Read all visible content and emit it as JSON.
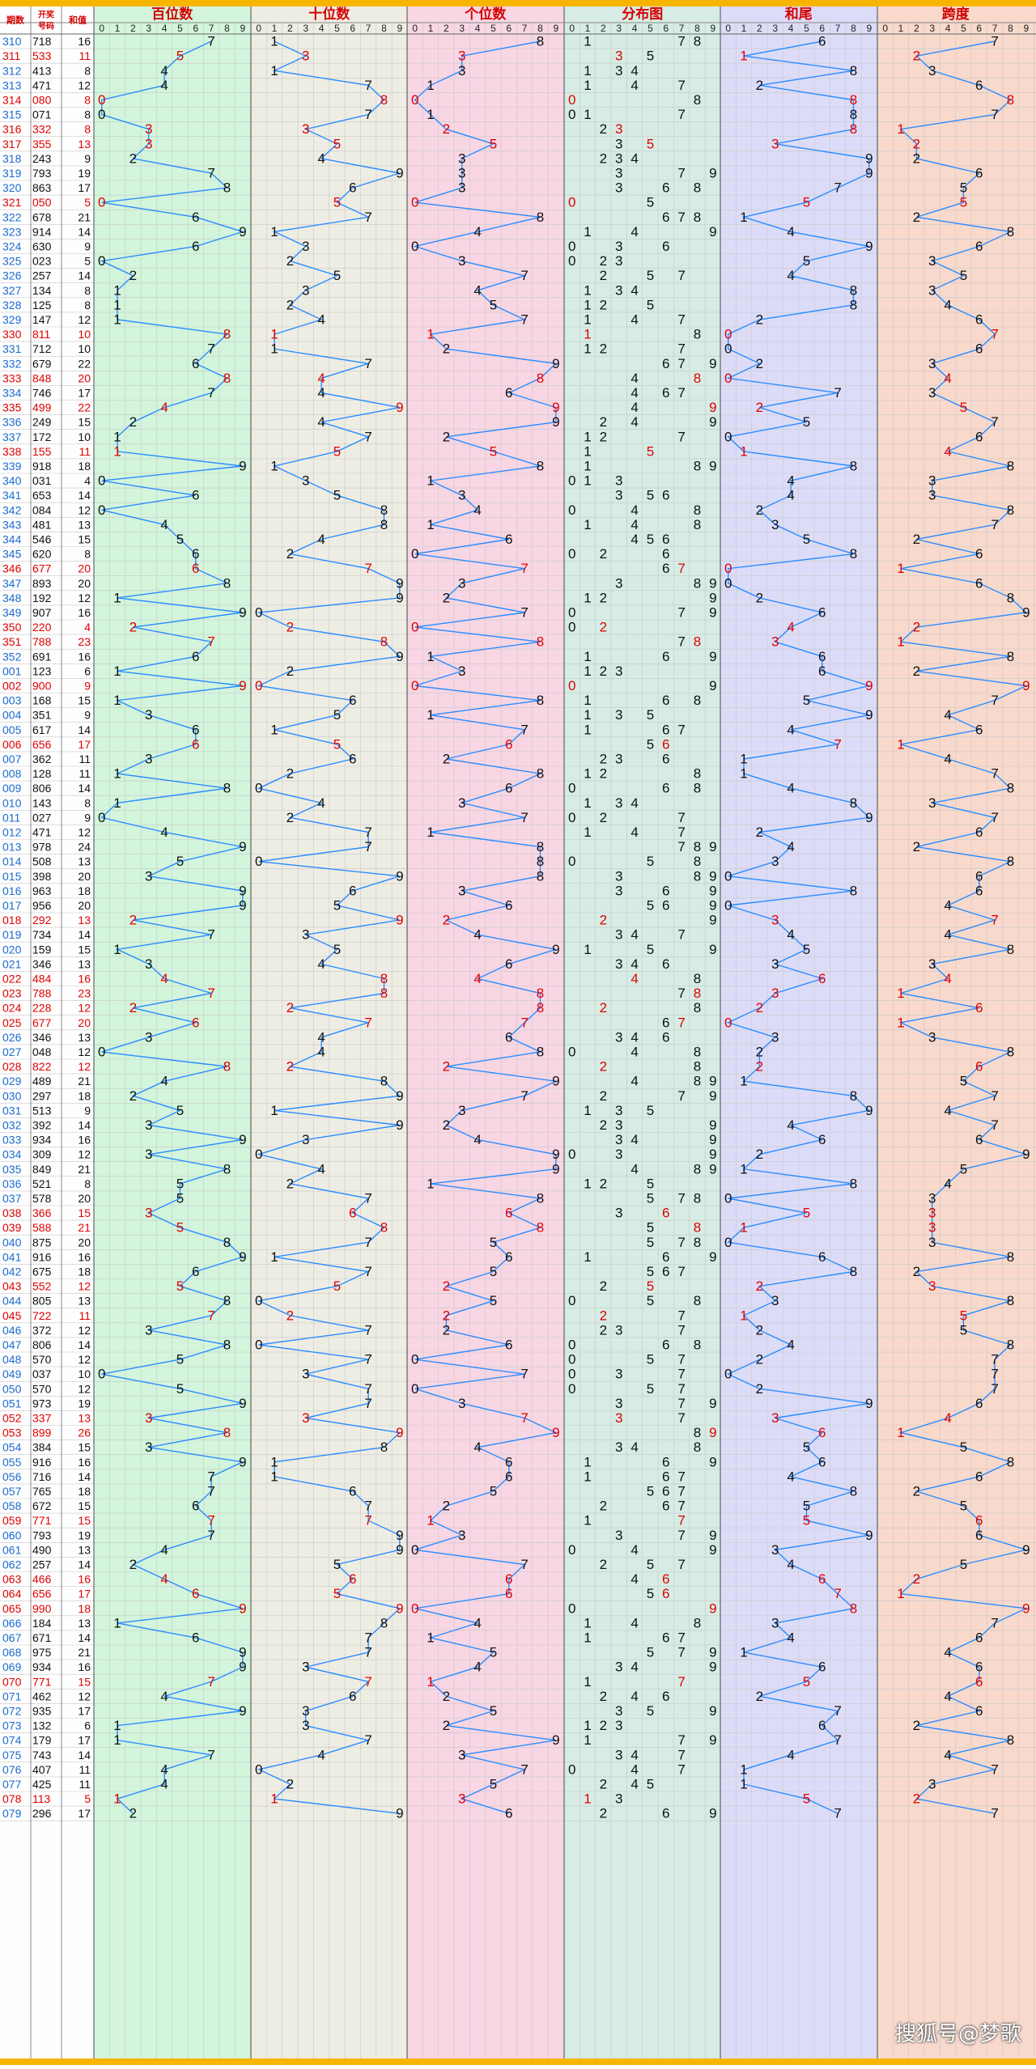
{
  "header": {
    "col_issue": "期数",
    "col_number": "开奖号码",
    "col_sum": "和值",
    "sections": [
      "百位数",
      "十位数",
      "个位数",
      "分布图",
      "和尾",
      "跨度"
    ],
    "digits": [
      "0",
      "1",
      "2",
      "3",
      "4",
      "5",
      "6",
      "7",
      "8",
      "9"
    ]
  },
  "colors": {
    "band_top": "#f7b500",
    "header_text": "#d40000",
    "line": "#2a8cff",
    "bg_hundreds": "#d2f5dc",
    "bg_tens": "#eeede4",
    "bg_units": "#f8d6e4",
    "bg_distribution": "#d6ece4",
    "bg_sum_tail": "#dcdcf8",
    "bg_span": "#f8d9cc",
    "left_bg": "#fefefe",
    "issue_text": "#1a6bd0",
    "highlight": "#e00000",
    "grid": "#c8c8c8"
  },
  "watermark": "搜狐号@梦歌",
  "chart_data": {
    "type": "table",
    "sections": [
      "百位数",
      "十位数",
      "个位数",
      "分布图",
      "和尾",
      "跨度"
    ],
    "rows": [
      {
        "issue": "310",
        "number": "718",
        "sum": 16
      },
      {
        "issue": "311",
        "number": "533",
        "sum": 11
      },
      {
        "issue": "312",
        "number": "413",
        "sum": 8
      },
      {
        "issue": "313",
        "number": "471",
        "sum": 12
      },
      {
        "issue": "314",
        "number": "080",
        "sum": 8
      },
      {
        "issue": "315",
        "number": "071",
        "sum": 8
      },
      {
        "issue": "316",
        "number": "332",
        "sum": 8
      },
      {
        "issue": "317",
        "number": "355",
        "sum": 13
      },
      {
        "issue": "318",
        "number": "243",
        "sum": 9
      },
      {
        "issue": "319",
        "number": "793",
        "sum": 19
      },
      {
        "issue": "320",
        "number": "863",
        "sum": 17
      },
      {
        "issue": "321",
        "number": "050",
        "sum": 5
      },
      {
        "issue": "322",
        "number": "678",
        "sum": 21
      },
      {
        "issue": "323",
        "number": "914",
        "sum": 14
      },
      {
        "issue": "324",
        "number": "630",
        "sum": 9
      },
      {
        "issue": "325",
        "number": "023",
        "sum": 5
      },
      {
        "issue": "326",
        "number": "257",
        "sum": 14
      },
      {
        "issue": "327",
        "number": "134",
        "sum": 8
      },
      {
        "issue": "328",
        "number": "125",
        "sum": 8
      },
      {
        "issue": "329",
        "number": "147",
        "sum": 12
      },
      {
        "issue": "330",
        "number": "811",
        "sum": 10
      },
      {
        "issue": "331",
        "number": "712",
        "sum": 10
      },
      {
        "issue": "332",
        "number": "679",
        "sum": 22
      },
      {
        "issue": "333",
        "number": "848",
        "sum": 20
      },
      {
        "issue": "334",
        "number": "746",
        "sum": 17
      },
      {
        "issue": "335",
        "number": "499",
        "sum": 22
      },
      {
        "issue": "336",
        "number": "249",
        "sum": 15
      },
      {
        "issue": "337",
        "number": "172",
        "sum": 10
      },
      {
        "issue": "338",
        "number": "155",
        "sum": 11
      },
      {
        "issue": "339",
        "number": "918",
        "sum": 18
      },
      {
        "issue": "340",
        "number": "031",
        "sum": 4
      },
      {
        "issue": "341",
        "number": "653",
        "sum": 14
      },
      {
        "issue": "342",
        "number": "084",
        "sum": 12
      },
      {
        "issue": "343",
        "number": "481",
        "sum": 13
      },
      {
        "issue": "344",
        "number": "546",
        "sum": 15
      },
      {
        "issue": "345",
        "number": "620",
        "sum": 8
      },
      {
        "issue": "346",
        "number": "677",
        "sum": 20
      },
      {
        "issue": "347",
        "number": "893",
        "sum": 20
      },
      {
        "issue": "348",
        "number": "192",
        "sum": 12
      },
      {
        "issue": "349",
        "number": "907",
        "sum": 16
      },
      {
        "issue": "350",
        "number": "220",
        "sum": 4
      },
      {
        "issue": "351",
        "number": "788",
        "sum": 23
      },
      {
        "issue": "352",
        "number": "691",
        "sum": 16
      },
      {
        "issue": "001",
        "number": "123",
        "sum": 6
      },
      {
        "issue": "002",
        "number": "900",
        "sum": 9
      },
      {
        "issue": "003",
        "number": "168",
        "sum": 15
      },
      {
        "issue": "004",
        "number": "351",
        "sum": 9
      },
      {
        "issue": "005",
        "number": "617",
        "sum": 14
      },
      {
        "issue": "006",
        "number": "656",
        "sum": 17
      },
      {
        "issue": "007",
        "number": "362",
        "sum": 11
      },
      {
        "issue": "008",
        "number": "128",
        "sum": 11
      },
      {
        "issue": "009",
        "number": "806",
        "sum": 14
      },
      {
        "issue": "010",
        "number": "143",
        "sum": 8
      },
      {
        "issue": "011",
        "number": "027",
        "sum": 9
      },
      {
        "issue": "012",
        "number": "471",
        "sum": 12
      },
      {
        "issue": "013",
        "number": "978",
        "sum": 24
      },
      {
        "issue": "014",
        "number": "508",
        "sum": 13
      },
      {
        "issue": "015",
        "number": "398",
        "sum": 20
      },
      {
        "issue": "016",
        "number": "963",
        "sum": 18
      },
      {
        "issue": "017",
        "number": "956",
        "sum": 20
      },
      {
        "issue": "018",
        "number": "292",
        "sum": 13
      },
      {
        "issue": "019",
        "number": "734",
        "sum": 14
      },
      {
        "issue": "020",
        "number": "159",
        "sum": 15
      },
      {
        "issue": "021",
        "number": "346",
        "sum": 13
      },
      {
        "issue": "022",
        "number": "484",
        "sum": 16
      },
      {
        "issue": "023",
        "number": "788",
        "sum": 23
      },
      {
        "issue": "024",
        "number": "228",
        "sum": 12
      },
      {
        "issue": "025",
        "number": "677",
        "sum": 20
      },
      {
        "issue": "026",
        "number": "346",
        "sum": 13
      },
      {
        "issue": "027",
        "number": "048",
        "sum": 12
      },
      {
        "issue": "028",
        "number": "822",
        "sum": 12
      },
      {
        "issue": "029",
        "number": "489",
        "sum": 21
      },
      {
        "issue": "030",
        "number": "297",
        "sum": 18
      },
      {
        "issue": "031",
        "number": "513",
        "sum": 9
      },
      {
        "issue": "032",
        "number": "392",
        "sum": 14
      },
      {
        "issue": "033",
        "number": "934",
        "sum": 16
      },
      {
        "issue": "034",
        "number": "309",
        "sum": 12
      },
      {
        "issue": "035",
        "number": "849",
        "sum": 21
      },
      {
        "issue": "036",
        "number": "521",
        "sum": 8
      },
      {
        "issue": "037",
        "number": "578",
        "sum": 20
      },
      {
        "issue": "038",
        "number": "366",
        "sum": 15
      },
      {
        "issue": "039",
        "number": "588",
        "sum": 21
      },
      {
        "issue": "040",
        "number": "875",
        "sum": 20
      },
      {
        "issue": "041",
        "number": "916",
        "sum": 16
      },
      {
        "issue": "042",
        "number": "675",
        "sum": 18
      },
      {
        "issue": "043",
        "number": "552",
        "sum": 12
      },
      {
        "issue": "044",
        "number": "805",
        "sum": 13
      },
      {
        "issue": "045",
        "number": "722",
        "sum": 11
      },
      {
        "issue": "046",
        "number": "372",
        "sum": 12
      },
      {
        "issue": "047",
        "number": "806",
        "sum": 14
      },
      {
        "issue": "048",
        "number": "570",
        "sum": 12
      },
      {
        "issue": "049",
        "number": "037",
        "sum": 10
      },
      {
        "issue": "050",
        "number": "570",
        "sum": 12
      },
      {
        "issue": "051",
        "number": "973",
        "sum": 19
      },
      {
        "issue": "052",
        "number": "337",
        "sum": 13
      },
      {
        "issue": "053",
        "number": "899",
        "sum": 26
      },
      {
        "issue": "054",
        "number": "384",
        "sum": 15
      },
      {
        "issue": "055",
        "number": "916",
        "sum": 16
      },
      {
        "issue": "056",
        "number": "716",
        "sum": 14
      },
      {
        "issue": "057",
        "number": "765",
        "sum": 18
      },
      {
        "issue": "058",
        "number": "672",
        "sum": 15
      },
      {
        "issue": "059",
        "number": "771",
        "sum": 15
      },
      {
        "issue": "060",
        "number": "793",
        "sum": 19
      },
      {
        "issue": "061",
        "number": "490",
        "sum": 13
      },
      {
        "issue": "062",
        "number": "257",
        "sum": 14
      },
      {
        "issue": "063",
        "number": "466",
        "sum": 16
      },
      {
        "issue": "064",
        "number": "656",
        "sum": 17
      },
      {
        "issue": "065",
        "number": "990",
        "sum": 18
      },
      {
        "issue": "066",
        "number": "184",
        "sum": 13
      },
      {
        "issue": "067",
        "number": "671",
        "sum": 14
      },
      {
        "issue": "068",
        "number": "975",
        "sum": 21
      },
      {
        "issue": "069",
        "number": "934",
        "sum": 16
      },
      {
        "issue": "070",
        "number": "771",
        "sum": 15
      },
      {
        "issue": "071",
        "number": "462",
        "sum": 12
      },
      {
        "issue": "072",
        "number": "935",
        "sum": 17
      },
      {
        "issue": "073",
        "number": "132",
        "sum": 6
      },
      {
        "issue": "074",
        "number": "179",
        "sum": 17
      },
      {
        "issue": "075",
        "number": "743",
        "sum": 14
      },
      {
        "issue": "076",
        "number": "407",
        "sum": 11
      },
      {
        "issue": "077",
        "number": "425",
        "sum": 11
      },
      {
        "issue": "078",
        "number": "113",
        "sum": 5
      },
      {
        "issue": "079",
        "number": "296",
        "sum": 17
      }
    ]
  }
}
